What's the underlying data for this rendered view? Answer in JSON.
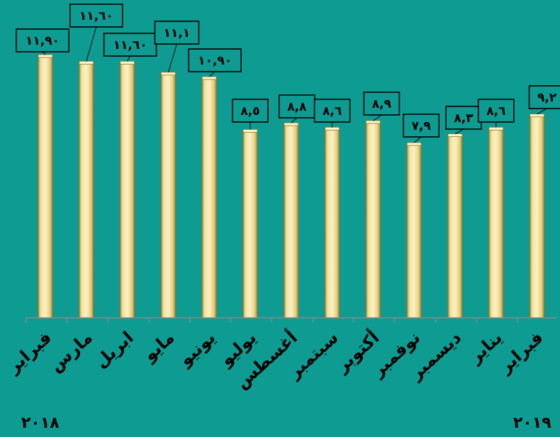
{
  "chart_data": {
    "type": "bar",
    "categories": [
      "فبراير",
      "مارس",
      "ابريل",
      "مايو",
      "يونيو",
      "يوليو",
      "أغسطس",
      "سبتمبر",
      "أكتوبر",
      "نوفمبر",
      "ديسمبر",
      "يناير",
      "فبراير"
    ],
    "values": [
      11.9,
      11.6,
      11.6,
      11.1,
      10.9,
      8.5,
      8.8,
      8.6,
      8.9,
      7.9,
      8.3,
      8.6,
      9.2
    ],
    "data_labels": [
      "١١,٩٠",
      "١١,٦٠",
      "١١,٦٠",
      "١١,١",
      "١٠,٩٠",
      "٨,٥",
      "٨,٨",
      "٨,٦",
      "٨,٩",
      "٧,٩",
      "٨,٣",
      "٨,٦",
      "٩,٢"
    ],
    "year_labels": [
      "٢٠١٨",
      "٢٠١٩"
    ],
    "ylim": [
      0,
      13
    ],
    "grid": false,
    "legend": "none",
    "bar_color": "#e9d58a",
    "background_color": "#0e9b92"
  }
}
